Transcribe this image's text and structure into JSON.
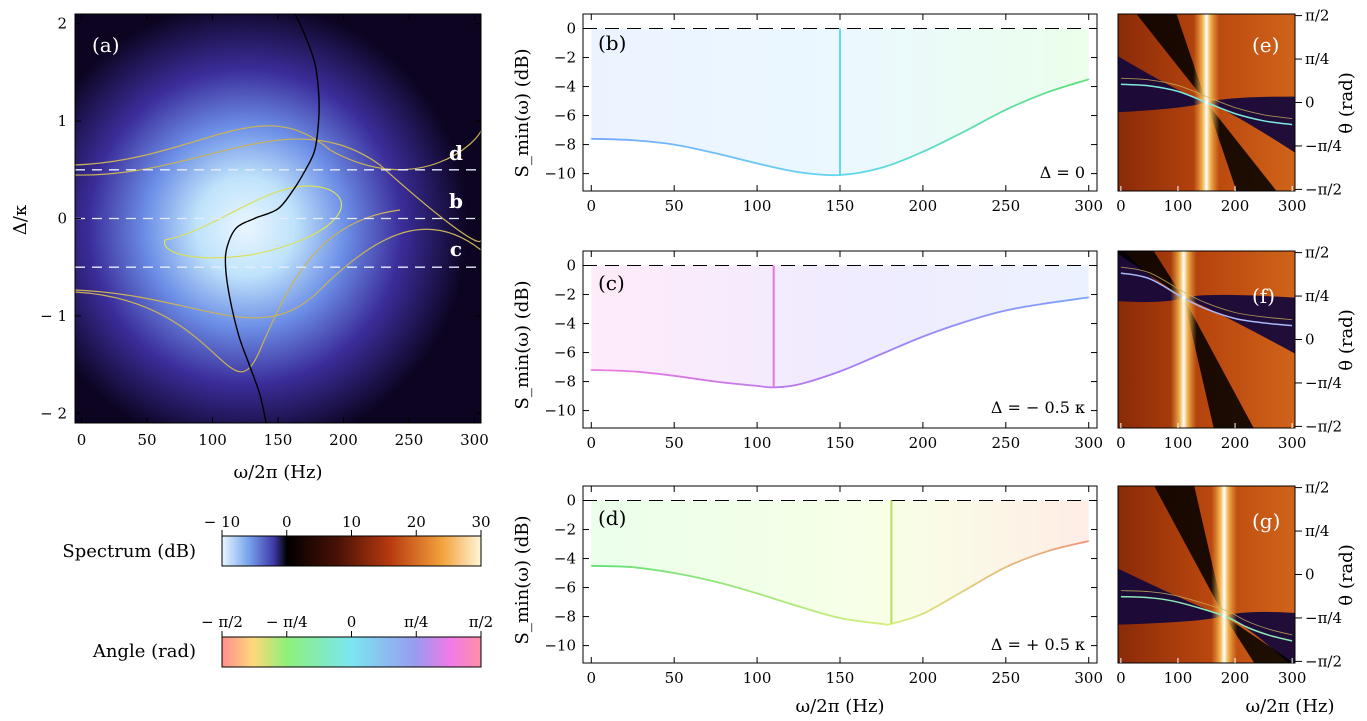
{
  "figure": {
    "panels": {
      "a": {
        "label": "(a)",
        "xlabel": "ω/2π  (Hz)",
        "ylabel": "Δ/κ",
        "cut_labels": [
          "d",
          "b",
          "c"
        ],
        "cut_values": [
          0.5,
          0,
          -0.5
        ]
      },
      "b": {
        "label": "(b)",
        "annotation": "Δ = 0",
        "ylabel": "S_min(ω)  (dB)"
      },
      "c": {
        "label": "(c)",
        "annotation": "Δ = − 0.5 κ",
        "ylabel": "S_min(ω)  (dB)"
      },
      "d": {
        "label": "(d)",
        "annotation": "Δ = + 0.5 κ",
        "ylabel": "S_min(ω)  (dB)",
        "xlabel": "ω/2π (Hz)"
      },
      "e": {
        "label": "(e)",
        "ylabel": "θ  (rad)"
      },
      "f": {
        "label": "(f)",
        "ylabel": "θ  (rad)"
      },
      "g": {
        "label": "(g)",
        "ylabel": "θ  (rad)",
        "xlabel": "ω/2π  (Hz)"
      }
    },
    "theta_ticks": [
      "π/2",
      "π/4",
      "0",
      "−π/4",
      "−π/2"
    ],
    "colorbars": {
      "spectrum": {
        "label": "Spectrum (dB)",
        "ticks": [
          "− 10",
          "0",
          "10",
          "20",
          "30"
        ],
        "values": [
          -10,
          0,
          10,
          20,
          30
        ]
      },
      "angle": {
        "label": "Angle (rad)",
        "ticks": [
          "− π/2",
          "− π/4",
          "0",
          "π/4",
          "π/2"
        ]
      }
    }
  },
  "chart_data": [
    {
      "type": "heatmap",
      "panel": "a",
      "title": "",
      "xlabel": "ω/2π  (Hz)",
      "ylabel": "Δ/κ",
      "xlim": [
        -5,
        305
      ],
      "ylim": [
        -2.1,
        2.1
      ],
      "x_ticks": [
        0,
        50,
        100,
        150,
        200,
        250,
        300
      ],
      "y_ticks": [
        -2,
        -1,
        0,
        1,
        2
      ],
      "y_tick_labels": [
        "− 2",
        "− 1",
        "0",
        "1",
        "2"
      ],
      "colorbar": "spectrum",
      "cut_lines": [
        0.5,
        0,
        -0.5
      ],
      "optimal_frequency_curve": {
        "x": [
          141,
          136,
          128,
          120,
          113,
          110,
          111,
          118,
          132,
          150,
          162,
          171,
          178,
          181,
          181,
          178,
          170,
          163
        ],
        "y": [
          -2.1,
          -1.8,
          -1.5,
          -1.2,
          -0.8,
          -0.5,
          -0.3,
          -0.1,
          0.0,
          0.1,
          0.3,
          0.5,
          0.7,
          1.0,
          1.3,
          1.6,
          1.9,
          2.1
        ]
      }
    },
    {
      "type": "line",
      "panel": "b",
      "annotation": "Δ = 0",
      "xlabel": "",
      "ylabel": "S_min(ω)  (dB)",
      "xlim": [
        -5,
        305
      ],
      "ylim": [
        -11.2,
        1.0
      ],
      "x_ticks": [
        0,
        50,
        100,
        150,
        200,
        250,
        300
      ],
      "y_ticks": [
        0,
        -2,
        -4,
        -6,
        -8,
        -10
      ],
      "y_tick_labels": [
        "0",
        "−2",
        "−4",
        "−6",
        "−8",
        "−10"
      ],
      "x": [
        0,
        25,
        50,
        75,
        100,
        125,
        150,
        175,
        200,
        225,
        250,
        275,
        300
      ],
      "values": [
        -7.6,
        -7.7,
        -8.0,
        -8.6,
        -9.3,
        -9.9,
        -10.1,
        -9.6,
        -8.5,
        -7.1,
        -5.6,
        -4.4,
        -3.5
      ],
      "vertical_line_x": 150,
      "reference_line_y": 0
    },
    {
      "type": "line",
      "panel": "c",
      "annotation": "Δ = − 0.5 κ",
      "xlabel": "",
      "ylabel": "S_min(ω)  (dB)",
      "xlim": [
        -5,
        305
      ],
      "ylim": [
        -11.2,
        1.0
      ],
      "x_ticks": [
        0,
        50,
        100,
        150,
        200,
        250,
        300
      ],
      "y_ticks": [
        0,
        -2,
        -4,
        -6,
        -8,
        -10
      ],
      "y_tick_labels": [
        "0",
        "−2",
        "−4",
        "−6",
        "−8",
        "−10"
      ],
      "x": [
        0,
        25,
        50,
        75,
        100,
        110,
        125,
        150,
        175,
        200,
        225,
        250,
        275,
        300
      ],
      "values": [
        -7.2,
        -7.3,
        -7.6,
        -8.0,
        -8.3,
        -8.4,
        -8.2,
        -7.3,
        -6.1,
        -4.9,
        -3.9,
        -3.1,
        -2.6,
        -2.2
      ],
      "vertical_line_x": 110,
      "reference_line_y": 0
    },
    {
      "type": "line",
      "panel": "d",
      "annotation": "Δ = + 0.5 κ",
      "xlabel": "ω/2π (Hz)",
      "ylabel": "S_min(ω)  (dB)",
      "xlim": [
        -5,
        305
      ],
      "ylim": [
        -11.2,
        1.0
      ],
      "x_ticks": [
        0,
        50,
        100,
        150,
        200,
        250,
        300
      ],
      "y_ticks": [
        0,
        -2,
        -4,
        -6,
        -8,
        -10
      ],
      "y_tick_labels": [
        "0",
        "−2",
        "−4",
        "−6",
        "−8",
        "−10"
      ],
      "x": [
        0,
        25,
        50,
        75,
        100,
        125,
        150,
        175,
        181,
        200,
        225,
        250,
        275,
        300
      ],
      "values": [
        -4.5,
        -4.6,
        -5.0,
        -5.6,
        -6.4,
        -7.3,
        -8.1,
        -8.5,
        -8.5,
        -7.8,
        -6.2,
        -4.6,
        -3.5,
        -2.8
      ],
      "vertical_line_x": 181,
      "reference_line_y": 0
    },
    {
      "type": "heatmap",
      "panel": "e",
      "xlabel": "",
      "ylabel": "θ  (rad)",
      "xlim": [
        -5,
        305
      ],
      "ylim": [
        -1.6,
        1.6
      ],
      "x_ticks": [
        0,
        100,
        200,
        300
      ],
      "colorbar": "spectrum",
      "bright_band_x": 150,
      "crossing_point": [
        150,
        0
      ],
      "optimal_angle_curve": {
        "x": [
          0,
          50,
          100,
          150,
          200,
          250,
          300
        ],
        "y": [
          0.33,
          0.3,
          0.2,
          0.0,
          -0.2,
          -0.33,
          -0.4
        ]
      }
    },
    {
      "type": "heatmap",
      "panel": "f",
      "xlabel": "",
      "ylabel": "θ  (rad)",
      "xlim": [
        -5,
        305
      ],
      "ylim": [
        -1.6,
        1.6
      ],
      "x_ticks": [
        0,
        100,
        200,
        300
      ],
      "colorbar": "spectrum",
      "bright_band_x": 110,
      "crossing_point": [
        110,
        0.75
      ],
      "optimal_angle_curve": {
        "x": [
          0,
          50,
          110,
          150,
          200,
          250,
          300
        ],
        "y": [
          1.2,
          1.1,
          0.75,
          0.55,
          0.38,
          0.3,
          0.25
        ]
      }
    },
    {
      "type": "heatmap",
      "panel": "g",
      "xlabel": "ω/2π  (Hz)",
      "ylabel": "θ  (rad)",
      "xlim": [
        -5,
        305
      ],
      "ylim": [
        -1.6,
        1.6
      ],
      "x_ticks": [
        0,
        100,
        200,
        300
      ],
      "colorbar": "spectrum",
      "bright_band_x": 181,
      "crossing_point": [
        181,
        -0.75
      ],
      "optimal_angle_curve": {
        "x": [
          0,
          50,
          100,
          181,
          220,
          260,
          300
        ],
        "y": [
          -0.4,
          -0.42,
          -0.5,
          -0.75,
          -0.95,
          -1.1,
          -1.2
        ]
      }
    }
  ]
}
